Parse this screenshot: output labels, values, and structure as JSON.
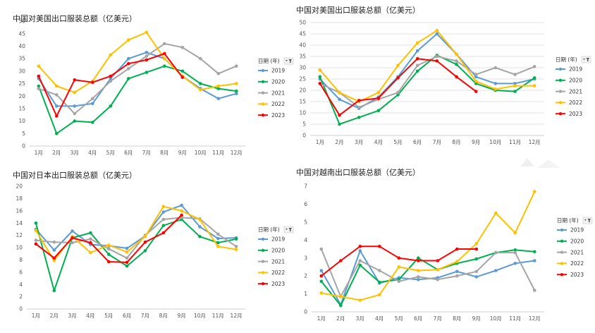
{
  "legend": {
    "title": "日期 (年)",
    "filter_icon": "filter-dropdown-icon",
    "names": [
      "2019",
      "2020",
      "2021",
      "2022",
      "2023"
    ],
    "colors": [
      "#5b9bd5",
      "#00b050",
      "#a5a5a5",
      "#ffc000",
      "#ff0000"
    ]
  },
  "chart_data": [
    {
      "type": "line",
      "title": "中国对美国出口服装总额（亿美元）",
      "categories": [
        "1月",
        "2月",
        "3月",
        "4月",
        "5月",
        "6月",
        "7月",
        "8月",
        "9月",
        "10月",
        "11月",
        "12月"
      ],
      "ylim": [
        0,
        50
      ],
      "yticks": [
        0,
        5,
        10,
        15,
        20,
        25,
        30,
        35,
        40,
        45,
        50
      ],
      "grid": false,
      "legend_placement": "right",
      "series": [
        {
          "name": "2019",
          "values": [
            27,
            16,
            16,
            17,
            27,
            35,
            37.5,
            35,
            28,
            23,
            19,
            21
          ]
        },
        {
          "name": "2020",
          "values": [
            24,
            5,
            10,
            9.5,
            16,
            27,
            29.5,
            32,
            30,
            25,
            23,
            22
          ]
        },
        {
          "name": "2021",
          "values": [
            23,
            20.5,
            13,
            19,
            26,
            31,
            36,
            41,
            39.5,
            35,
            29,
            32
          ]
        },
        {
          "name": "2022",
          "values": [
            32,
            24,
            21.5,
            26,
            36.5,
            42.5,
            45.5,
            35,
            28,
            22.5,
            24,
            25
          ]
        },
        {
          "name": "2023",
          "values": [
            28,
            12,
            26.5,
            25.5,
            28,
            33,
            34.5,
            37,
            27.5,
            null,
            null,
            null
          ]
        }
      ]
    },
    {
      "type": "line",
      "title": "中国对美国出口服装总额（亿美元）",
      "categories": [
        "1月",
        "2月",
        "3月",
        "4月",
        "5月",
        "6月",
        "7月",
        "8月",
        "9月",
        "10月",
        "11月",
        "12月"
      ],
      "ylim": [
        0,
        50
      ],
      "yticks": [
        0,
        5,
        10,
        15,
        20,
        25,
        30,
        35,
        40,
        45,
        50
      ],
      "grid": true,
      "legend_placement": "right",
      "series": [
        {
          "name": "2019",
          "values": [
            25,
            16,
            12,
            17,
            26,
            37.5,
            45,
            36,
            26,
            23,
            23,
            25
          ]
        },
        {
          "name": "2020",
          "values": [
            26,
            5,
            8,
            11,
            18,
            28.5,
            35.5,
            31.5,
            23,
            20,
            19.5,
            25.5
          ]
        },
        {
          "name": "2021",
          "values": [
            23,
            19,
            12.5,
            16,
            19,
            31,
            35,
            33,
            27,
            30,
            27,
            30.5
          ]
        },
        {
          "name": "2022",
          "values": [
            29,
            19,
            15,
            19,
            31,
            41,
            46.5,
            36,
            24,
            20.5,
            22,
            22
          ]
        },
        {
          "name": "2023",
          "values": [
            23,
            9,
            15.5,
            16.5,
            25.5,
            34,
            33,
            26,
            19.5,
            null,
            null,
            null
          ]
        }
      ]
    },
    {
      "type": "line",
      "title": "中国对日本出口服装总额（亿美元）",
      "categories": [
        "1月",
        "2月",
        "3月",
        "4月",
        "5月",
        "6月",
        "7月",
        "8月",
        "9月",
        "10月",
        "11月",
        "12月"
      ],
      "ylim": [
        0,
        20
      ],
      "yticks": [
        0,
        2,
        4,
        6,
        8,
        10,
        12,
        14,
        16,
        18,
        20
      ],
      "grid": false,
      "legend_placement": "right",
      "series": [
        {
          "name": "2019",
          "values": [
            13,
            9.6,
            12.7,
            10.5,
            10.3,
            9.9,
            11.9,
            15.8,
            16.9,
            13.4,
            11.5,
            11.6
          ]
        },
        {
          "name": "2020",
          "values": [
            14,
            3,
            11.6,
            12.4,
            8.9,
            7,
            9.5,
            13.6,
            14.6,
            11.8,
            10.8,
            11.4
          ]
        },
        {
          "name": "2021",
          "values": [
            11.2,
            10.9,
            10.8,
            11.4,
            9.8,
            8.3,
            12,
            14.6,
            14.9,
            14.7,
            12.2,
            10.2
          ]
        },
        {
          "name": "2022",
          "values": [
            12.8,
            7.9,
            11.8,
            9.2,
            10.4,
            9.3,
            11.8,
            16.7,
            16,
            14.6,
            10.2,
            9.7
          ]
        },
        {
          "name": "2023",
          "values": [
            10.6,
            8.3,
            11.6,
            10.8,
            7.7,
            7.6,
            10.9,
            12.4,
            15.3,
            null,
            null,
            null
          ]
        }
      ]
    },
    {
      "type": "line",
      "title": "中国对越南出口服装总额（亿美元）",
      "categories": [
        "1月",
        "2月",
        "3月",
        "4月",
        "5月",
        "6月",
        "7月",
        "8月",
        "9月",
        "10月",
        "11月",
        "12月"
      ],
      "ylim": [
        0,
        7
      ],
      "yticks": [
        0,
        1,
        2,
        3,
        4,
        5,
        6,
        7
      ],
      "grid": false,
      "legend_placement": "right",
      "series": [
        {
          "name": "2019",
          "values": [
            2.3,
            0.4,
            3.4,
            1.6,
            1.9,
            1.8,
            1.9,
            2.25,
            1.95,
            2.3,
            2.7,
            2.85
          ]
        },
        {
          "name": "2020",
          "values": [
            1.7,
            0.35,
            2.6,
            1.65,
            1.8,
            3,
            2.35,
            2.7,
            2.95,
            3.3,
            3.45,
            3.35
          ]
        },
        {
          "name": "2021",
          "values": [
            3.5,
            0.85,
            2.85,
            2.3,
            1.7,
            1.95,
            1.8,
            2,
            2.25,
            3.3,
            3.3,
            1.2
          ]
        },
        {
          "name": "2022",
          "values": [
            1.05,
            0.85,
            0.65,
            0.95,
            2.5,
            2.3,
            2.35,
            2.8,
            3.8,
            5.5,
            4.4,
            6.7
          ]
        },
        {
          "name": "2023",
          "values": [
            2,
            2.85,
            3.65,
            3.65,
            3,
            2.85,
            2.85,
            3.5,
            3.5,
            null,
            null,
            null
          ]
        }
      ]
    }
  ]
}
